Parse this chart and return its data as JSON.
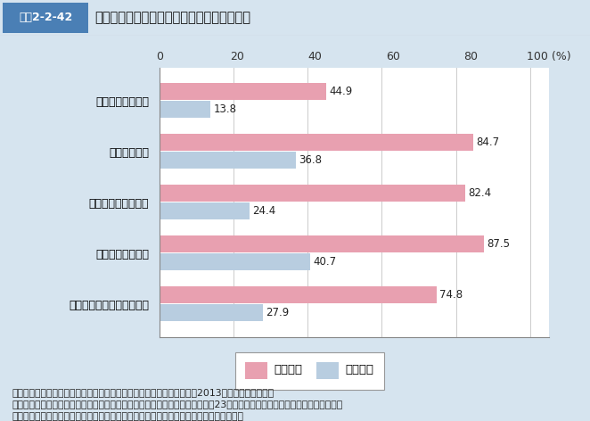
{
  "title": "特定健診の被保険者と被扶養者の受診率の差",
  "title_box_label": "図表2-2-42",
  "categories": [
    "全国健康保険協会",
    "健康保険組合",
    "国家公務員共済組合",
    "地方職員共済組合",
    "私立学校振興・共済事業団"
  ],
  "insured_values": [
    44.9,
    84.7,
    82.4,
    87.5,
    74.8
  ],
  "dependent_values": [
    13.8,
    36.8,
    24.4,
    40.7,
    27.9
  ],
  "insured_color": "#E8A0B0",
  "dependent_color": "#B8CDE0",
  "bar_height": 0.32,
  "xlim": [
    0,
    105
  ],
  "xticks": [
    0,
    20,
    40,
    60,
    80,
    100
  ],
  "legend_insured": "被保険者",
  "legend_dependent": "被扶養者",
  "background_color": "#D6E4EF",
  "plot_bg_color": "#FFFFFF",
  "footer_line1": "資料：「特定健康診査・特定保健指導に関するアンケート調査結果」（2013年度実施）より集計",
  "footer_line2": "（注）　なお、協会けんぽ（全国健康保険協会）の実施率については、「平成23年度事業報告書」より抜粋したものであり図",
  "footer_line3": "への実績報告の数字とは集計方法が異なるため、国が公表している数字とは整合しない。",
  "title_box_color": "#4A7FB5",
  "title_box_text_color": "#FFFFFF",
  "value_fontsize": 8.5,
  "category_fontsize": 9,
  "tick_fontsize": 9,
  "legend_fontsize": 9.5,
  "footer_fontsize": 7.8
}
